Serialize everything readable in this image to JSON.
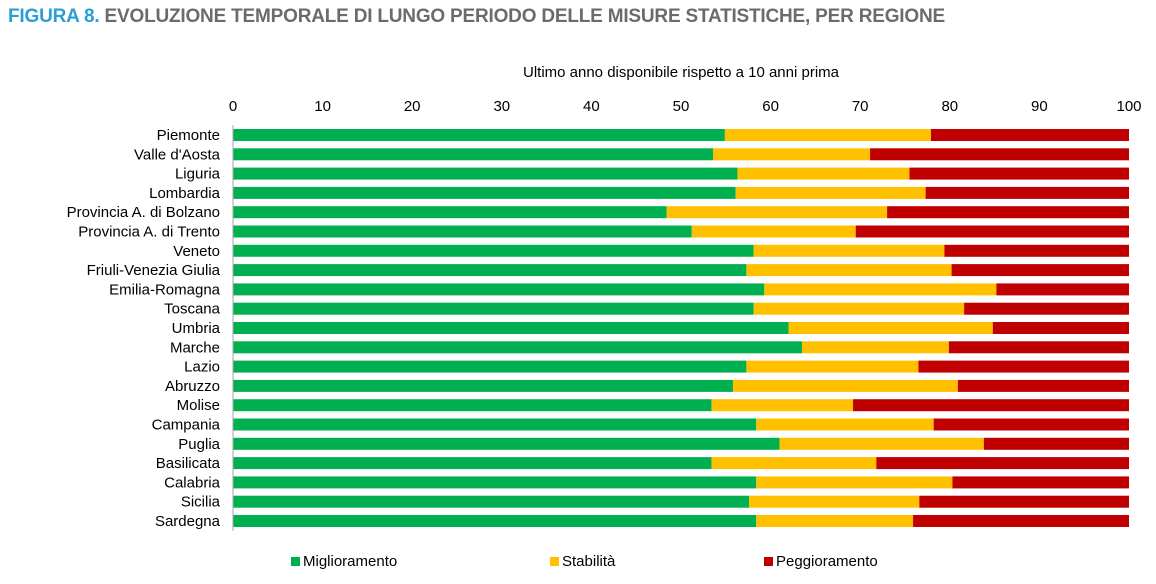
{
  "figure": {
    "number": "FIGURA 8.",
    "title": "EVOLUZIONE TEMPORALE DI LUNGO PERIODO DELLE MISURE STATISTICHE, PER REGIONE"
  },
  "chart_data": {
    "type": "bar",
    "orientation": "horizontal",
    "stacked": true,
    "title": "Ultimo anno disponibile rispetto a 10 anni prima",
    "xlim": [
      0,
      100
    ],
    "x_ticks": [
      0,
      10,
      20,
      30,
      40,
      50,
      60,
      70,
      80,
      90,
      100
    ],
    "x_axis_position": "top",
    "grid": false,
    "legend_position": "bottom",
    "categories": [
      "Piemonte",
      "Valle d'Aosta",
      "Liguria",
      "Lombardia",
      "Provincia A. di Bolzano",
      "Provincia A. di Trento",
      "Veneto",
      "Friuli-Venezia Giulia",
      "Emilia-Romagna",
      "Toscana",
      "Umbria",
      "Marche",
      "Lazio",
      "Abruzzo",
      "Molise",
      "Campania",
      "Puglia",
      "Basilicata",
      "Calabria",
      "Sicilia",
      "Sardegna"
    ],
    "series": [
      {
        "name": "Miglioramento",
        "color": "#00b050",
        "values": [
          54.9,
          53.6,
          56.3,
          56.1,
          48.4,
          51.2,
          58.1,
          57.3,
          59.3,
          58.1,
          62.0,
          63.5,
          57.3,
          55.8,
          53.4,
          58.4,
          61.0,
          53.4,
          58.4,
          57.6,
          58.4
        ]
      },
      {
        "name": "Stabilità",
        "color": "#ffc000",
        "values": [
          23.0,
          17.5,
          19.2,
          21.2,
          24.6,
          18.3,
          21.3,
          22.9,
          25.9,
          23.5,
          22.8,
          16.4,
          19.2,
          25.1,
          15.8,
          19.8,
          22.8,
          18.4,
          21.9,
          19.0,
          17.5
        ]
      },
      {
        "name": "Peggioramento",
        "color": "#c00000",
        "values": [
          22.1,
          28.9,
          24.5,
          22.7,
          27.0,
          30.5,
          20.6,
          19.8,
          14.8,
          18.4,
          15.2,
          20.1,
          23.5,
          19.1,
          30.8,
          21.8,
          16.2,
          28.2,
          19.7,
          23.4,
          24.1
        ]
      }
    ]
  }
}
